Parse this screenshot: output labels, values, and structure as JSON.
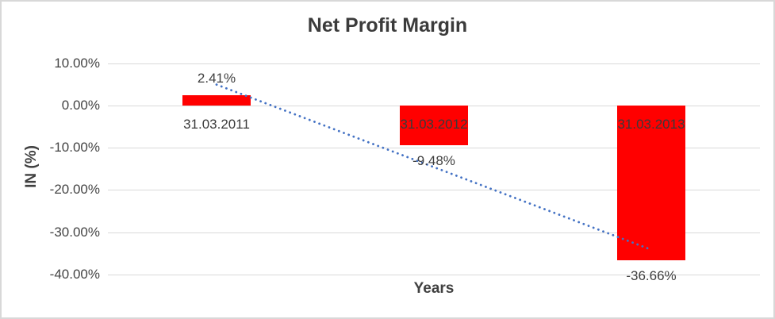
{
  "chart_data": {
    "type": "bar",
    "title": "Net Profit Margin",
    "xlabel": "Years",
    "ylabel": "IN (%)",
    "categories": [
      "31.03.2011",
      "31.03.2012",
      "31.03.2013"
    ],
    "values": [
      2.41,
      -9.48,
      -36.66
    ],
    "data_labels": [
      "2.41%",
      "-9.48%",
      "-36.66%"
    ],
    "y_ticks": [
      {
        "value": 10,
        "label": "10.00%"
      },
      {
        "value": 0,
        "label": "0.00%"
      },
      {
        "value": -10,
        "label": "-10.00%"
      },
      {
        "value": -20,
        "label": "-20.00%"
      },
      {
        "value": -30,
        "label": "-30.00%"
      },
      {
        "value": -40,
        "label": "-40.00%"
      }
    ],
    "ylim": [
      -40,
      10
    ],
    "grid": true,
    "legend": "none",
    "bar_color": "#FF0000",
    "trendline": {
      "type": "linear",
      "style": "dotted",
      "color": "#4472C4",
      "start_pct": 4.96,
      "end_pct": -34.14
    },
    "colors": {
      "gridline": "#D9D9D9",
      "tick_text": "#444444",
      "label_text": "#404040",
      "title_text": "#3B3B3B",
      "background": "#FFFFFF",
      "border": "#D8D8D8"
    }
  }
}
